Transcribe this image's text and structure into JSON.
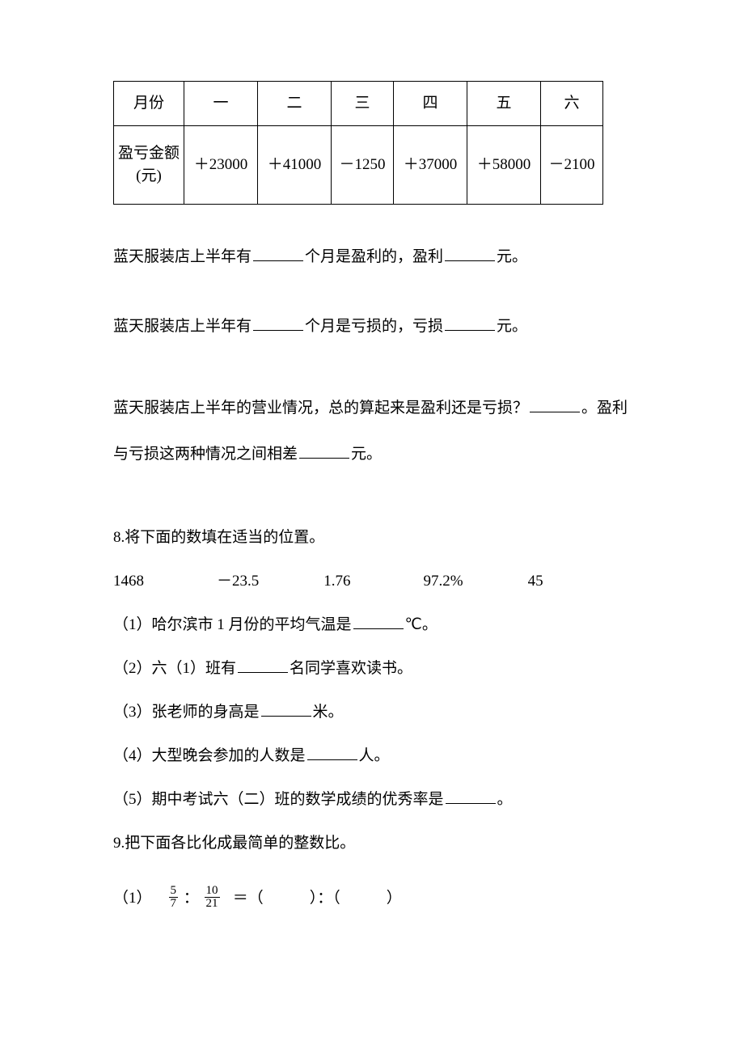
{
  "table": {
    "headers": [
      "月份",
      "一",
      "二",
      "三",
      "四",
      "五",
      "六"
    ],
    "row_label": "盈亏金额(元)",
    "values": [
      "＋23000",
      "＋41000",
      "－1250",
      "＋37000",
      "＋58000",
      "－2100"
    ]
  },
  "q7": {
    "line1_a": "蓝天服装店上半年有",
    "line1_b": "个月是盈利的，盈利",
    "line1_c": "元。",
    "line2_a": "蓝天服装店上半年有",
    "line2_b": "个月是亏损的，亏损",
    "line2_c": "元。",
    "line3_a": "蓝天服装店上半年的营业情况，总的算起来是盈利还是亏损？",
    "line3_b": "。盈利与亏损这两种情况之间相差",
    "line3_c": "元。"
  },
  "q8": {
    "title": "8.将下面的数填在适当的位置。",
    "n1": "1468",
    "n2": "－23.5",
    "n3": "1.76",
    "n4": "97.2%",
    "n5": "45",
    "item1_a": "（1）哈尔滨市 1 月份的平均气温是",
    "item1_b": "℃。",
    "item2_a": "（2）六（1）班有",
    "item2_b": "名同学喜欢读书。",
    "item3_a": "（3）张老师的身高是",
    "item3_b": "米。",
    "item4_a": "（4）大型晚会参加的人数是",
    "item4_b": "人。",
    "item5_a": "（5）期中考试六（二）班的数学成绩的优秀率是",
    "item5_b": "。"
  },
  "q9": {
    "title": "9.把下面各比化成最简单的整数比。",
    "item1_label": "（1）",
    "f1_num": "5",
    "f1_den": "7",
    "colon": "：",
    "f2_num": "10",
    "f2_den": "21",
    "eq_tail": "＝（　　　）：（　　　）"
  }
}
